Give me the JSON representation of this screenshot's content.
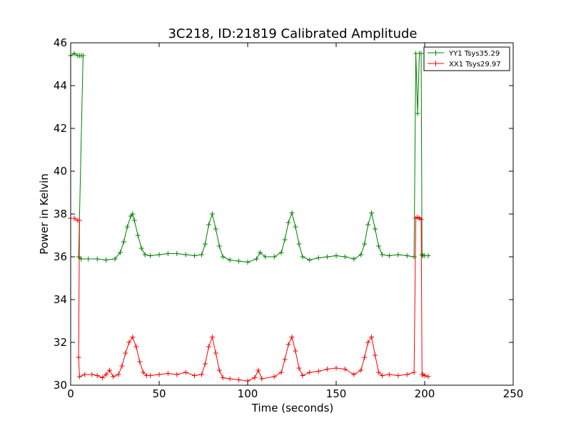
{
  "chart_data": {
    "type": "line",
    "title": "3C218, ID:21819 Calibrated Amplitude",
    "xlabel": "Time (seconds)",
    "ylabel": "Power in Kelvin",
    "xlim": [
      0,
      250
    ],
    "ylim": [
      30,
      46
    ],
    "x_ticks": [
      "0",
      "50",
      "100",
      "150",
      "200",
      "250"
    ],
    "y_ticks": [
      "30",
      "32",
      "34",
      "36",
      "38",
      "40",
      "42",
      "44",
      "46"
    ],
    "grid": false,
    "legend_position": "top-right",
    "series": [
      {
        "name": "YY1 Tsys35.29",
        "color": "#008000",
        "marker": "+",
        "points": [
          [
            0,
            45.4
          ],
          [
            2,
            45.5
          ],
          [
            4,
            45.4
          ],
          [
            5,
            45.4
          ],
          [
            6,
            45.4
          ],
          [
            7,
            45.4
          ],
          [
            4.5,
            36.0
          ],
          [
            6,
            35.9
          ],
          [
            10,
            35.9
          ],
          [
            15,
            35.9
          ],
          [
            20,
            35.85
          ],
          [
            25,
            35.9
          ],
          [
            28,
            36.2
          ],
          [
            30,
            36.7
          ],
          [
            32,
            37.4
          ],
          [
            34,
            37.9
          ],
          [
            35,
            38.0
          ],
          [
            36,
            37.7
          ],
          [
            38,
            37.0
          ],
          [
            40,
            36.4
          ],
          [
            42,
            36.1
          ],
          [
            45,
            36.05
          ],
          [
            50,
            36.1
          ],
          [
            55,
            36.15
          ],
          [
            60,
            36.15
          ],
          [
            65,
            36.1
          ],
          [
            70,
            36.05
          ],
          [
            74,
            36.1
          ],
          [
            76,
            36.6
          ],
          [
            78,
            37.5
          ],
          [
            80,
            38.0
          ],
          [
            82,
            37.3
          ],
          [
            84,
            36.5
          ],
          [
            86,
            36.0
          ],
          [
            90,
            35.85
          ],
          [
            95,
            35.8
          ],
          [
            100,
            35.75
          ],
          [
            105,
            35.9
          ],
          [
            107,
            36.2
          ],
          [
            110,
            36.0
          ],
          [
            115,
            36.0
          ],
          [
            119,
            36.2
          ],
          [
            121,
            36.8
          ],
          [
            123,
            37.6
          ],
          [
            125,
            38.05
          ],
          [
            127,
            37.4
          ],
          [
            129,
            36.6
          ],
          [
            131,
            36.0
          ],
          [
            135,
            35.85
          ],
          [
            140,
            35.95
          ],
          [
            145,
            36.0
          ],
          [
            150,
            36.05
          ],
          [
            155,
            36.0
          ],
          [
            160,
            35.9
          ],
          [
            164,
            36.1
          ],
          [
            166,
            36.6
          ],
          [
            168,
            37.5
          ],
          [
            170,
            38.05
          ],
          [
            172,
            37.3
          ],
          [
            174,
            36.5
          ],
          [
            176,
            36.1
          ],
          [
            180,
            36.05
          ],
          [
            185,
            36.1
          ],
          [
            190,
            36.05
          ],
          [
            194,
            36.0
          ],
          [
            195,
            45.5
          ],
          [
            196,
            42.7
          ],
          [
            197,
            45.5
          ],
          [
            198,
            45.5
          ],
          [
            198.5,
            36.1
          ],
          [
            199,
            36.05
          ],
          [
            200,
            36.05
          ],
          [
            202,
            36.05
          ]
        ]
      },
      {
        "name": "XX1 Tsys29.97",
        "color": "#ff0000",
        "marker": "+",
        "points": [
          [
            0,
            37.8
          ],
          [
            2,
            37.8
          ],
          [
            4,
            37.7
          ],
          [
            5,
            37.7
          ],
          [
            4.5,
            31.3
          ],
          [
            5,
            30.4
          ],
          [
            8,
            30.5
          ],
          [
            12,
            30.5
          ],
          [
            15,
            30.45
          ],
          [
            18,
            30.35
          ],
          [
            20,
            30.5
          ],
          [
            22,
            30.7
          ],
          [
            24,
            30.4
          ],
          [
            27,
            30.5
          ],
          [
            29,
            30.9
          ],
          [
            31,
            31.5
          ],
          [
            33,
            32.0
          ],
          [
            35,
            32.25
          ],
          [
            37,
            31.8
          ],
          [
            39,
            31.1
          ],
          [
            41,
            30.6
          ],
          [
            43,
            30.45
          ],
          [
            45,
            30.45
          ],
          [
            50,
            30.5
          ],
          [
            55,
            30.55
          ],
          [
            60,
            30.5
          ],
          [
            65,
            30.6
          ],
          [
            70,
            30.45
          ],
          [
            74,
            30.5
          ],
          [
            76,
            31.0
          ],
          [
            78,
            31.8
          ],
          [
            80,
            32.25
          ],
          [
            82,
            31.5
          ],
          [
            84,
            30.7
          ],
          [
            86,
            30.35
          ],
          [
            90,
            30.3
          ],
          [
            95,
            30.25
          ],
          [
            100,
            30.2
          ],
          [
            104,
            30.35
          ],
          [
            106,
            30.7
          ],
          [
            108,
            30.3
          ],
          [
            115,
            30.4
          ],
          [
            119,
            30.6
          ],
          [
            121,
            31.2
          ],
          [
            123,
            31.9
          ],
          [
            125,
            32.25
          ],
          [
            127,
            31.6
          ],
          [
            129,
            30.8
          ],
          [
            131,
            30.45
          ],
          [
            135,
            30.6
          ],
          [
            140,
            30.65
          ],
          [
            145,
            30.75
          ],
          [
            150,
            30.8
          ],
          [
            155,
            30.75
          ],
          [
            160,
            30.5
          ],
          [
            164,
            30.7
          ],
          [
            166,
            31.3
          ],
          [
            168,
            32.0
          ],
          [
            170,
            32.25
          ],
          [
            172,
            31.4
          ],
          [
            174,
            30.6
          ],
          [
            176,
            30.45
          ],
          [
            180,
            30.5
          ],
          [
            185,
            30.45
          ],
          [
            190,
            30.5
          ],
          [
            194,
            30.6
          ],
          [
            195,
            37.8
          ],
          [
            196,
            37.85
          ],
          [
            197,
            37.8
          ],
          [
            198,
            37.75
          ],
          [
            198.5,
            30.5
          ],
          [
            199,
            30.5
          ],
          [
            200,
            30.45
          ],
          [
            202,
            30.4
          ]
        ]
      }
    ]
  }
}
